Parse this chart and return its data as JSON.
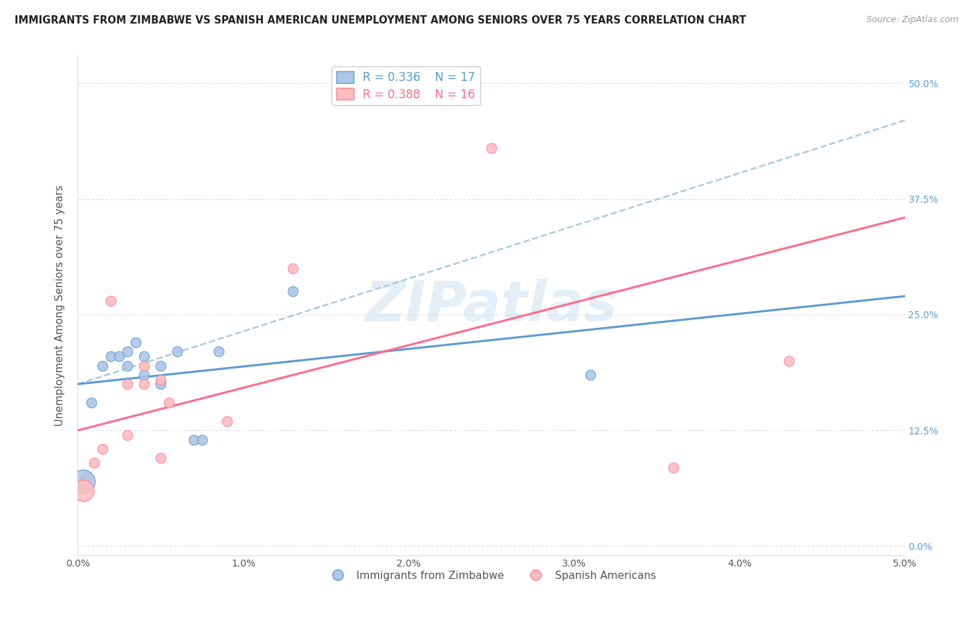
{
  "title": "IMMIGRANTS FROM ZIMBABWE VS SPANISH AMERICAN UNEMPLOYMENT AMONG SENIORS OVER 75 YEARS CORRELATION CHART",
  "source": "Source: ZipAtlas.com",
  "ylabel": "Unemployment Among Seniors over 75 years",
  "ytick_labels": [
    "0.0%",
    "12.5%",
    "25.0%",
    "37.5%",
    "50.0%"
  ],
  "ytick_values": [
    0.0,
    0.125,
    0.25,
    0.375,
    0.5
  ],
  "xlim": [
    0,
    0.05
  ],
  "ylim": [
    -0.01,
    0.53
  ],
  "xtick_values": [
    0.0,
    0.01,
    0.02,
    0.03,
    0.04,
    0.05
  ],
  "xtick_labels": [
    "0.0%",
    "1.0%",
    "2.0%",
    "3.0%",
    "4.0%",
    "5.0%"
  ],
  "legend_entry1_r": "R = 0.336",
  "legend_entry1_n": "N = 17",
  "legend_entry2_r": "R = 0.388",
  "legend_entry2_n": "N = 16",
  "legend_label1": "Immigrants from Zimbabwe",
  "legend_label2": "Spanish Americans",
  "blue_color": "#AEC6E8",
  "blue_edge_color": "#5B9BD5",
  "pink_color": "#FFBDBD",
  "pink_edge_color": "#FF7F9E",
  "blue_line_color": "#5B9BD5",
  "pink_line_color": "#FF6B8A",
  "dashed_line_color": "#AACCDD",
  "watermark_text": "ZIPatlas",
  "watermark_color": "#C8DFF0",
  "blue_x": [
    0.0008,
    0.0015,
    0.002,
    0.0025,
    0.003,
    0.003,
    0.0035,
    0.004,
    0.004,
    0.005,
    0.005,
    0.006,
    0.007,
    0.0075,
    0.0085,
    0.013,
    0.031
  ],
  "blue_y": [
    0.155,
    0.195,
    0.205,
    0.205,
    0.21,
    0.195,
    0.22,
    0.205,
    0.185,
    0.195,
    0.175,
    0.21,
    0.115,
    0.115,
    0.21,
    0.275,
    0.185
  ],
  "blue_special_x": [
    0.0003
  ],
  "blue_special_y": [
    0.07
  ],
  "blue_special_size": 600,
  "pink_x": [
    0.0005,
    0.001,
    0.0015,
    0.002,
    0.003,
    0.003,
    0.004,
    0.004,
    0.005,
    0.005,
    0.0055,
    0.009,
    0.013,
    0.025,
    0.036,
    0.043
  ],
  "pink_y": [
    0.075,
    0.09,
    0.105,
    0.265,
    0.12,
    0.175,
    0.175,
    0.195,
    0.18,
    0.095,
    0.155,
    0.135,
    0.3,
    0.43,
    0.085,
    0.2
  ],
  "pink_special_x": [
    0.0003
  ],
  "pink_special_y": [
    0.06
  ],
  "pink_special_size": 500,
  "blue_trend_x0": 0.0,
  "blue_trend_y0": 0.175,
  "blue_trend_x1": 0.05,
  "blue_trend_y1": 0.27,
  "dashed_trend_x0": 0.0,
  "dashed_trend_y0": 0.175,
  "dashed_trend_x1": 0.05,
  "dashed_trend_y1": 0.46,
  "pink_trend_x0": 0.0,
  "pink_trend_y0": 0.125,
  "pink_trend_x1": 0.05,
  "pink_trend_y1": 0.355
}
